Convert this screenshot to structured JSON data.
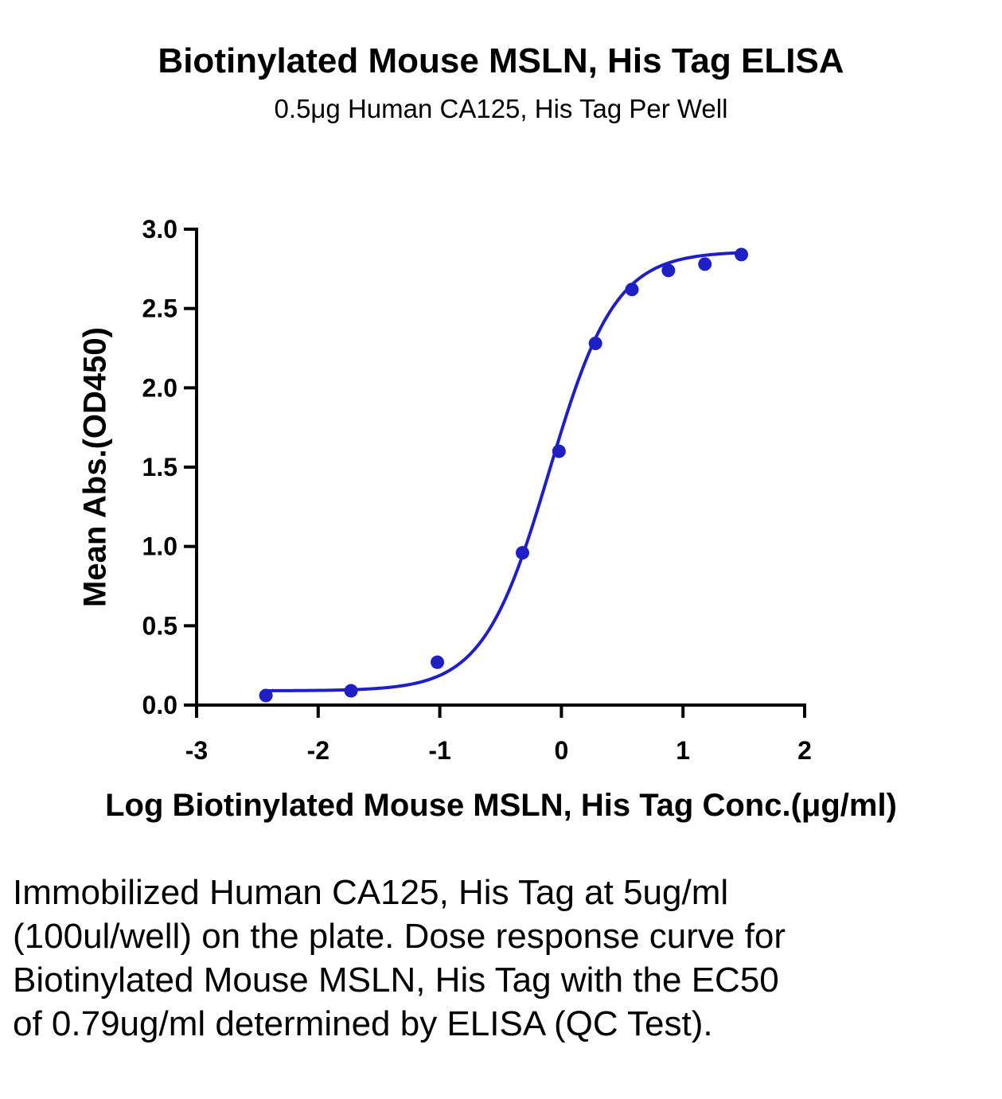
{
  "chart_data": {
    "type": "scatter",
    "title": "Biotinylated Mouse MSLN, His Tag ELISA",
    "subtitle": "0.5μg Human CA125, His Tag Per Well",
    "xlabel": "Log Biotinylated Mouse MSLN, His Tag Conc.(μg/ml)",
    "ylabel": "Mean Abs.(OD450)",
    "xlim": [
      -3,
      2
    ],
    "ylim": [
      0,
      3
    ],
    "xticks": [
      "-3",
      "-2",
      "-1",
      "0",
      "1",
      "2"
    ],
    "yticks": [
      "0.0",
      "0.5",
      "1.0",
      "1.5",
      "2.0",
      "2.5",
      "3.0"
    ],
    "grid": false,
    "color": "#1f1fc8",
    "points": {
      "x": [
        -2.43,
        -1.73,
        -1.02,
        -0.32,
        -0.02,
        0.28,
        0.58,
        0.88,
        1.18,
        1.48
      ],
      "y": [
        0.06,
        0.09,
        0.27,
        0.96,
        1.6,
        2.28,
        2.62,
        2.74,
        2.78,
        2.84
      ]
    },
    "fit": {
      "model": "4PL",
      "bottom": 0.09,
      "top": 2.86,
      "log_ec50": -0.1,
      "hill_slope": 1.6
    }
  },
  "caption": "Immobilized Human CA125, His Tag at 5ug/ml (100ul/well) on the plate. Dose response curve for Biotinylated Mouse MSLN, His Tag with the EC50 of 0.79ug/ml determined by ELISA (QC Test)."
}
